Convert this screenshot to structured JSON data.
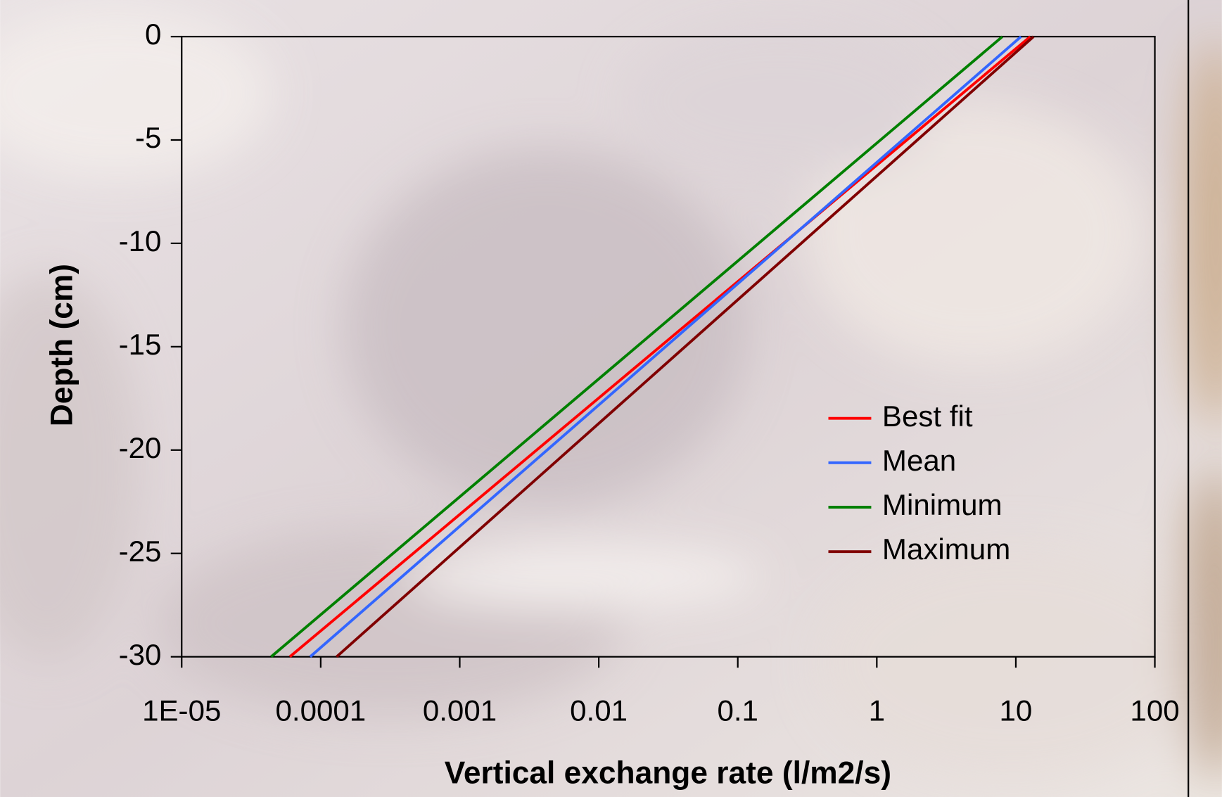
{
  "chart_data": {
    "type": "line",
    "xlabel": "Vertical exchange rate (l/m2/s)",
    "ylabel": "Depth (cm)",
    "xscale": "log",
    "xlim": [
      1e-05,
      100
    ],
    "xticks": [
      {
        "value": 1e-05,
        "label": "1E-05"
      },
      0.0001,
      0.001,
      0.01,
      0.1,
      1,
      10,
      100
    ],
    "ylim": [
      -30,
      0
    ],
    "yticks": [
      0,
      -5,
      -10,
      -15,
      -20,
      -25,
      -30
    ],
    "legend": "center-right",
    "series": [
      {
        "name": "Best fit",
        "color": "#ff0000",
        "x": [
          12.7,
          6e-05
        ],
        "values": [
          0,
          -30
        ]
      },
      {
        "name": "Mean",
        "color": "#3366ff",
        "x": [
          10.9,
          8.4e-05
        ],
        "values": [
          0,
          -30
        ]
      },
      {
        "name": "Minimum",
        "color": "#008000",
        "x": [
          8.0,
          4.4e-05
        ],
        "values": [
          0,
          -30
        ]
      },
      {
        "name": "Maximum",
        "color": "#800000",
        "x": [
          13.4,
          0.00013
        ],
        "values": [
          0,
          -30
        ]
      }
    ]
  }
}
